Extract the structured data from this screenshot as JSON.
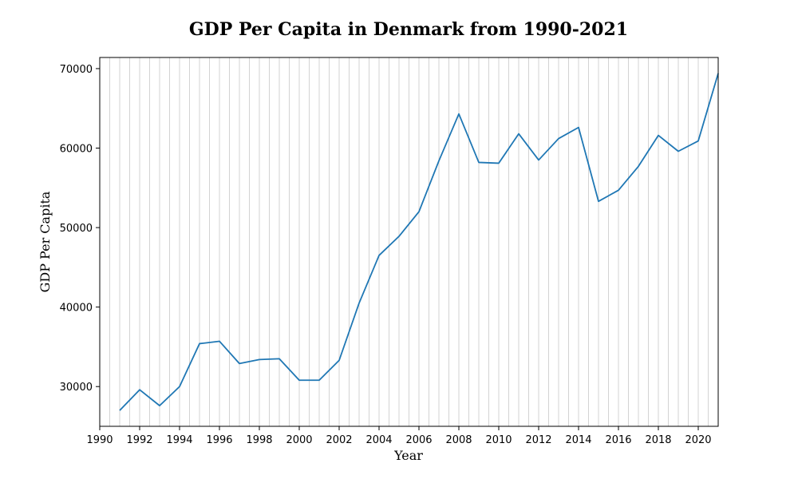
{
  "chart_data": {
    "type": "line",
    "title": "GDP Per Capita in Denmark from 1990-2021",
    "xlabel": "Year",
    "ylabel": "GDP Per Capita",
    "xlim": [
      1990,
      2021
    ],
    "ylim": [
      25000,
      71400
    ],
    "xticks": [
      1990,
      1992,
      1994,
      1996,
      1998,
      2000,
      2002,
      2004,
      2006,
      2008,
      2010,
      2012,
      2014,
      2016,
      2018,
      2020
    ],
    "yticks": [
      30000,
      40000,
      50000,
      60000,
      70000
    ],
    "grid": "vertical",
    "grid_step": 0.5,
    "series": [
      {
        "color": "#1f77b4",
        "x": [
          1991,
          1992,
          1993,
          1994,
          1995,
          1996,
          1997,
          1998,
          1999,
          2000,
          2001,
          2002,
          2003,
          2004,
          2005,
          2006,
          2007,
          2008,
          2009,
          2010,
          2011,
          2012,
          2013,
          2014,
          2015,
          2016,
          2017,
          2018,
          2019,
          2020,
          2021
        ],
        "values": [
          27000,
          29600,
          27600,
          30000,
          35400,
          35700,
          32900,
          33400,
          33500,
          30800,
          30800,
          33300,
          40500,
          46500,
          48900,
          52000,
          58400,
          64300,
          58200,
          58100,
          61800,
          58500,
          61200,
          62600,
          53300,
          54700,
          57700,
          61600,
          59600,
          60900,
          69400
        ]
      }
    ]
  }
}
